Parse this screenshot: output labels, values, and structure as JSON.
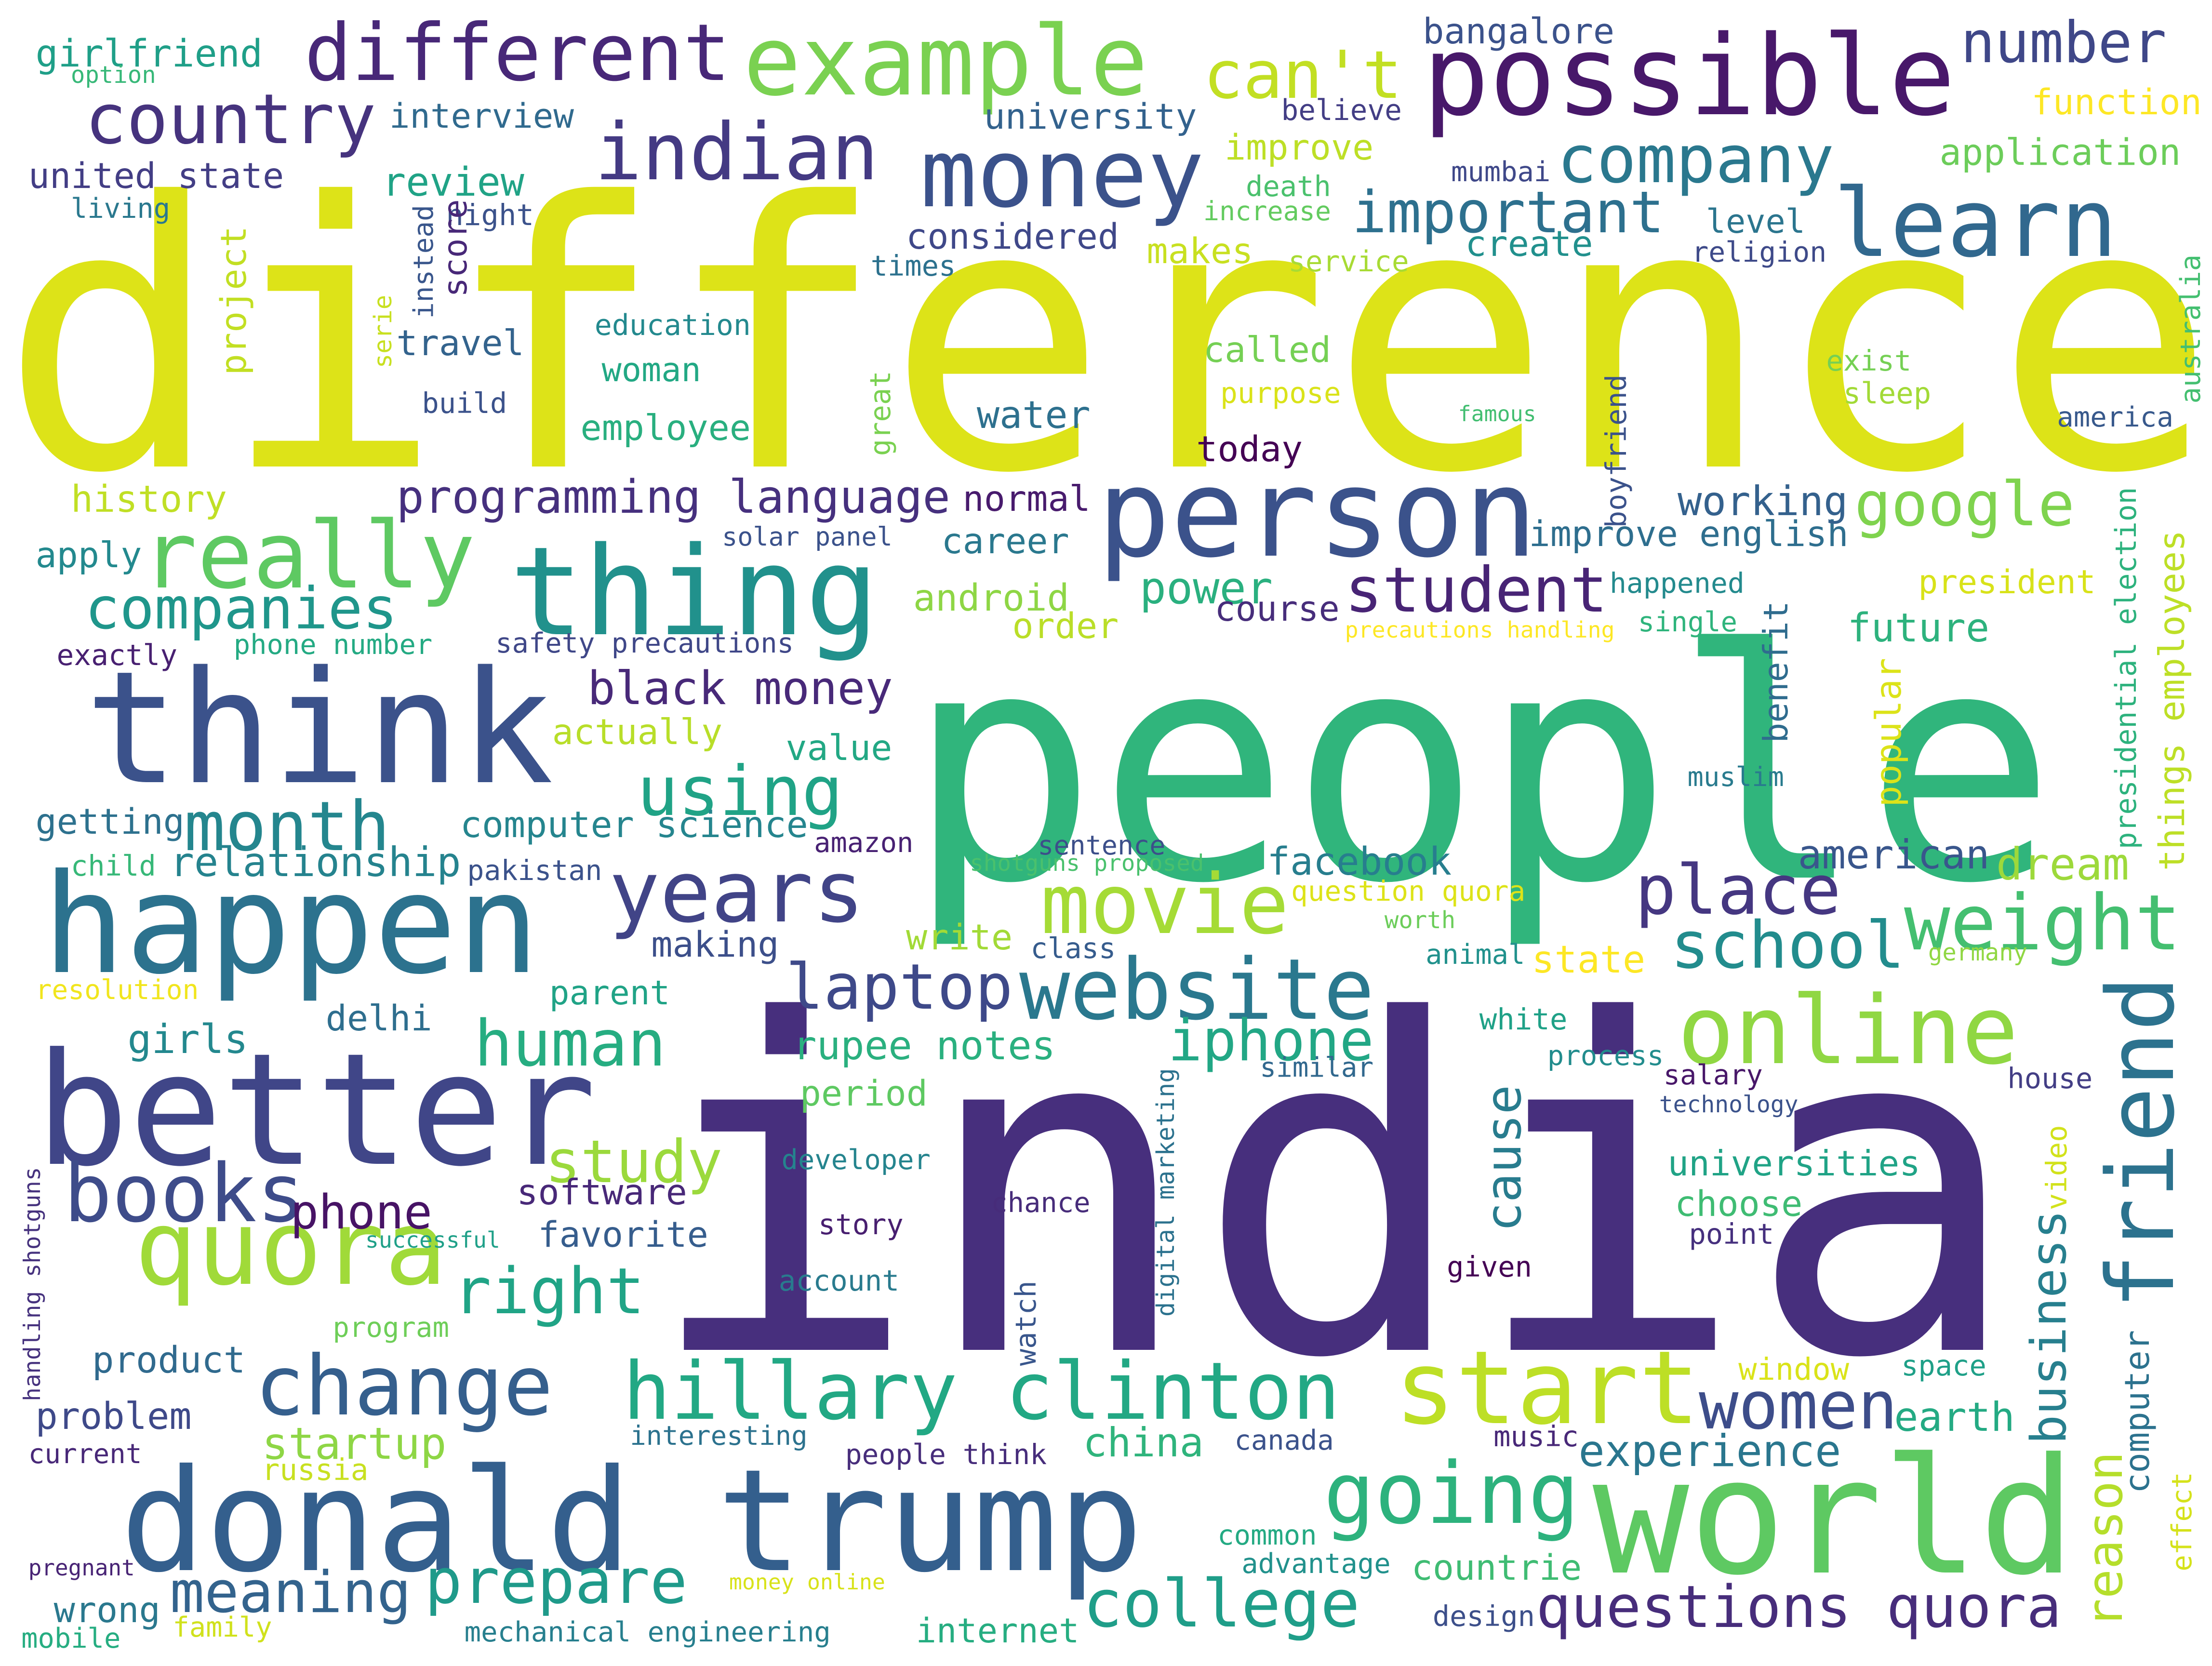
{
  "words": [
    {
      "text": "difference",
      "color": "#dde318",
      "vertical": false
    },
    {
      "text": "people",
      "color": "#30b57c",
      "vertical": false
    },
    {
      "text": "india",
      "color": "#472f7d",
      "vertical": false
    },
    {
      "text": "think",
      "color": "#3b528b",
      "vertical": false
    },
    {
      "text": "better",
      "color": "#404688",
      "vertical": false
    },
    {
      "text": "happen",
      "color": "#2c728e",
      "vertical": false
    },
    {
      "text": "donald trump",
      "color": "#345f8d",
      "vertical": false
    },
    {
      "text": "world",
      "color": "#5ec962",
      "vertical": false
    },
    {
      "text": "possible",
      "color": "#48186a",
      "vertical": false
    },
    {
      "text": "person",
      "color": "#3b528b",
      "vertical": false
    },
    {
      "text": "thing",
      "color": "#21918c",
      "vertical": false
    },
    {
      "text": "example",
      "color": "#7ad151",
      "vertical": false
    },
    {
      "text": "different",
      "color": "#482878",
      "vertical": false
    },
    {
      "text": "money",
      "color": "#3b528b",
      "vertical": false
    },
    {
      "text": "indian",
      "color": "#443a83",
      "vertical": false
    },
    {
      "text": "learn",
      "color": "#31688e",
      "vertical": false
    },
    {
      "text": "really",
      "color": "#5ec962",
      "vertical": false
    },
    {
      "text": "quora",
      "color": "#a0da39",
      "vertical": false
    },
    {
      "text": "start",
      "color": "#bddf26",
      "vertical": false
    },
    {
      "text": "online",
      "color": "#90d743",
      "vertical": false
    },
    {
      "text": "friend",
      "color": "#2c728e",
      "vertical": true
    },
    {
      "text": "hillary clinton",
      "color": "#22a884",
      "vertical": false
    },
    {
      "text": "change",
      "color": "#355f8d",
      "vertical": false
    },
    {
      "text": "website",
      "color": "#2a788e",
      "vertical": false
    },
    {
      "text": "movie",
      "color": "#a5db36",
      "vertical": false
    },
    {
      "text": "years",
      "color": "#414487",
      "vertical": false
    },
    {
      "text": "going",
      "color": "#2db27d",
      "vertical": false
    },
    {
      "text": "country",
      "color": "#46337e",
      "vertical": false
    },
    {
      "text": "books",
      "color": "#3e4c8a",
      "vertical": false
    },
    {
      "text": "college",
      "color": "#1f9e89",
      "vertical": false
    },
    {
      "text": "questions quora",
      "color": "#472d7b",
      "vertical": false
    },
    {
      "text": "weight",
      "color": "#44bf70",
      "vertical": false
    },
    {
      "text": "place",
      "color": "#453781",
      "vertical": false
    },
    {
      "text": "school",
      "color": "#228c8d",
      "vertical": false
    },
    {
      "text": "laptop",
      "color": "#3e4989",
      "vertical": false
    },
    {
      "text": "student",
      "color": "#482475",
      "vertical": false
    },
    {
      "text": "company",
      "color": "#2a788e",
      "vertical": false
    },
    {
      "text": "important",
      "color": "#2d708e",
      "vertical": false
    },
    {
      "text": "can't",
      "color": "#c2df23",
      "vertical": false
    },
    {
      "text": "number",
      "color": "#3f4788",
      "vertical": false
    },
    {
      "text": "using",
      "color": "#20a386",
      "vertical": false
    },
    {
      "text": "month",
      "color": "#24868e",
      "vertical": false
    },
    {
      "text": "companies",
      "color": "#1f968b",
      "vertical": false
    },
    {
      "text": "women",
      "color": "#3d4d8a",
      "vertical": false
    },
    {
      "text": "google",
      "color": "#7fd34e",
      "vertical": false
    },
    {
      "text": "prepare",
      "color": "#1f9a8a",
      "vertical": false
    },
    {
      "text": "meaning",
      "color": "#33638d",
      "vertical": false
    },
    {
      "text": "human",
      "color": "#26ad81",
      "vertical": false
    },
    {
      "text": "right",
      "color": "#20a486",
      "vertical": false
    },
    {
      "text": "iphone",
      "color": "#22a785",
      "vertical": false
    },
    {
      "text": "study",
      "color": "#9bd93c",
      "vertical": false
    },
    {
      "text": "cause",
      "color": "#287c8e",
      "vertical": true
    },
    {
      "text": "reason",
      "color": "#b5de2b",
      "vertical": true
    },
    {
      "text": "business",
      "color": "#277f8e",
      "vertical": true
    },
    {
      "text": "experience",
      "color": "#2a768e",
      "vertical": false
    },
    {
      "text": "programming language",
      "color": "#46307e",
      "vertical": false
    },
    {
      "text": "black money",
      "color": "#482979",
      "vertical": false
    },
    {
      "text": "relationship",
      "color": "#25838e",
      "vertical": false
    },
    {
      "text": "computer science",
      "color": "#25858e",
      "vertical": false
    },
    {
      "text": "improve english",
      "color": "#2e6e8e",
      "vertical": false
    },
    {
      "text": "working",
      "color": "#34618d",
      "vertical": false
    },
    {
      "text": "rupee notes",
      "color": "#2ab07f",
      "vertical": false
    },
    {
      "text": "money online",
      "color": "#d8e219",
      "vertical": false
    },
    {
      "text": "china",
      "color": "#2fb47c",
      "vertical": false
    },
    {
      "text": "phone",
      "color": "#471365",
      "vertical": false
    },
    {
      "text": "facebook",
      "color": "#277e8e",
      "vertical": false
    },
    {
      "text": "american",
      "color": "#39568c",
      "vertical": false
    },
    {
      "text": "future",
      "color": "#2db27d",
      "vertical": false
    },
    {
      "text": "actually",
      "color": "#b8de29",
      "vertical": false
    },
    {
      "text": "university",
      "color": "#33628d",
      "vertical": false
    },
    {
      "text": "interview",
      "color": "#306a8e",
      "vertical": false
    },
    {
      "text": "girlfriend",
      "color": "#1f9f88",
      "vertical": false
    },
    {
      "text": "bangalore",
      "color": "#3b528b",
      "vertical": false
    },
    {
      "text": "function",
      "color": "#fde725",
      "vertical": false
    },
    {
      "text": "application",
      "color": "#6ccd5a",
      "vertical": false
    },
    {
      "text": "united state",
      "color": "#433e85",
      "vertical": false
    },
    {
      "text": "review",
      "color": "#20a386",
      "vertical": false
    },
    {
      "text": "considered",
      "color": "#3f4889",
      "vertical": false
    },
    {
      "text": "create",
      "color": "#21908d",
      "vertical": false
    },
    {
      "text": "level",
      "color": "#2b758e",
      "vertical": false
    },
    {
      "text": "religion",
      "color": "#3e4a89",
      "vertical": false
    },
    {
      "text": "improve",
      "color": "#bddf26",
      "vertical": false
    },
    {
      "text": "believe",
      "color": "#433e85",
      "vertical": false
    },
    {
      "text": "mumbai",
      "color": "#3f4889",
      "vertical": false
    },
    {
      "text": "death",
      "color": "#4ac16d",
      "vertical": false
    },
    {
      "text": "increase",
      "color": "#63cb5f",
      "vertical": false
    },
    {
      "text": "makes",
      "color": "#c8e020",
      "vertical": false
    },
    {
      "text": "service",
      "color": "#a8db34",
      "vertical": false
    },
    {
      "text": "times",
      "color": "#2c718e",
      "vertical": false
    },
    {
      "text": "education",
      "color": "#23898e",
      "vertical": false
    },
    {
      "text": "woman",
      "color": "#22a884",
      "vertical": false
    },
    {
      "text": "travel",
      "color": "#33638d",
      "vertical": false
    },
    {
      "text": "build",
      "color": "#3b528b",
      "vertical": false
    },
    {
      "text": "employee",
      "color": "#29af7f",
      "vertical": false
    },
    {
      "text": "water",
      "color": "#2d708e",
      "vertical": false
    },
    {
      "text": "called",
      "color": "#75d054",
      "vertical": false
    },
    {
      "text": "purpose",
      "color": "#dae319",
      "vertical": false
    },
    {
      "text": "today",
      "color": "#440154",
      "vertical": false
    },
    {
      "text": "history",
      "color": "#c0df25",
      "vertical": false
    },
    {
      "text": "normal",
      "color": "#481b6d",
      "vertical": false
    },
    {
      "text": "career",
      "color": "#2a788e",
      "vertical": false
    },
    {
      "text": "android",
      "color": "#8ed645",
      "vertical": false
    },
    {
      "text": "power",
      "color": "#2ab07f",
      "vertical": false
    },
    {
      "text": "course",
      "color": "#472d7b",
      "vertical": false
    },
    {
      "text": "order",
      "color": "#bade28",
      "vertical": false
    },
    {
      "text": "apply",
      "color": "#23898e",
      "vertical": false
    },
    {
      "text": "exactly",
      "color": "#482071",
      "vertical": false
    },
    {
      "text": "phone number",
      "color": "#24aa83",
      "vertical": false
    },
    {
      "text": "safety precautions",
      "color": "#3f4788",
      "vertical": false
    },
    {
      "text": "solar panel",
      "color": "#3b528b",
      "vertical": false
    },
    {
      "text": "happened",
      "color": "#238a8d",
      "vertical": false
    },
    {
      "text": "single",
      "color": "#2fb47c",
      "vertical": false
    },
    {
      "text": "president",
      "color": "#d8e219",
      "vertical": false
    },
    {
      "text": "precautions handling",
      "color": "#fde725",
      "vertical": false
    },
    {
      "text": "getting",
      "color": "#2d718e",
      "vertical": false
    },
    {
      "text": "child",
      "color": "#37b878",
      "vertical": false
    },
    {
      "text": "pakistan",
      "color": "#3b528b",
      "vertical": false
    },
    {
      "text": "amazon",
      "color": "#482173",
      "vertical": false
    },
    {
      "text": "sentence",
      "color": "#3c4f8a",
      "vertical": false
    },
    {
      "text": "shotguns proposed",
      "color": "#4ac16d",
      "vertical": false
    },
    {
      "text": "question quora",
      "color": "#dde318",
      "vertical": false
    },
    {
      "text": "dream",
      "color": "#9dd93b",
      "vertical": false
    },
    {
      "text": "value",
      "color": "#22a884",
      "vertical": false
    },
    {
      "text": "making",
      "color": "#3c4f8a",
      "vertical": false
    },
    {
      "text": "write",
      "color": "#a2da37",
      "vertical": false
    },
    {
      "text": "class",
      "color": "#365c8d",
      "vertical": false
    },
    {
      "text": "worth",
      "color": "#6ccd5a",
      "vertical": false
    },
    {
      "text": "animal",
      "color": "#21918c",
      "vertical": false
    },
    {
      "text": "state",
      "color": "#fde725",
      "vertical": false
    },
    {
      "text": "germany",
      "color": "#90d743",
      "vertical": false
    },
    {
      "text": "resolution",
      "color": "#f1e51d",
      "vertical": false
    },
    {
      "text": "parent",
      "color": "#20a386",
      "vertical": false
    },
    {
      "text": "delhi",
      "color": "#2e6e8e",
      "vertical": false
    },
    {
      "text": "girls",
      "color": "#23888e",
      "vertical": false
    },
    {
      "text": "period",
      "color": "#5ec962",
      "vertical": false
    },
    {
      "text": "white",
      "color": "#1fa187",
      "vertical": false
    },
    {
      "text": "process",
      "color": "#228c8d",
      "vertical": false
    },
    {
      "text": "similar",
      "color": "#31688e",
      "vertical": false
    },
    {
      "text": "salary",
      "color": "#481769",
      "vertical": false
    },
    {
      "text": "house",
      "color": "#433e85",
      "vertical": false
    },
    {
      "text": "technology",
      "color": "#3b528b",
      "vertical": false
    },
    {
      "text": "developer",
      "color": "#25848e",
      "vertical": false
    },
    {
      "text": "software",
      "color": "#482878",
      "vertical": false
    },
    {
      "text": "favorite",
      "color": "#365d8d",
      "vertical": false
    },
    {
      "text": "chance",
      "color": "#472c7a",
      "vertical": false
    },
    {
      "text": "story",
      "color": "#481f70",
      "vertical": false
    },
    {
      "text": "point",
      "color": "#46307e",
      "vertical": false
    },
    {
      "text": "universities",
      "color": "#20a386",
      "vertical": false
    },
    {
      "text": "choose",
      "color": "#3fbc73",
      "vertical": false
    },
    {
      "text": "successful",
      "color": "#1fa088",
      "vertical": false
    },
    {
      "text": "account",
      "color": "#297b8e",
      "vertical": false
    },
    {
      "text": "given",
      "color": "#440154",
      "vertical": false
    },
    {
      "text": "program",
      "color": "#6ece58",
      "vertical": false
    },
    {
      "text": "product",
      "color": "#306a8e",
      "vertical": false
    },
    {
      "text": "problem",
      "color": "#3e4989",
      "vertical": false
    },
    {
      "text": "current",
      "color": "#482878",
      "vertical": false
    },
    {
      "text": "startup",
      "color": "#8ed645",
      "vertical": false
    },
    {
      "text": "russia",
      "color": "#c8e020",
      "vertical": false
    },
    {
      "text": "interesting",
      "color": "#2c728e",
      "vertical": false
    },
    {
      "text": "people think",
      "color": "#472d7b",
      "vertical": false
    },
    {
      "text": "canada",
      "color": "#3b528b",
      "vertical": false
    },
    {
      "text": "music",
      "color": "#482878",
      "vertical": false
    },
    {
      "text": "window",
      "color": "#dae319",
      "vertical": false
    },
    {
      "text": "space",
      "color": "#1fa088",
      "vertical": false
    },
    {
      "text": "earth",
      "color": "#24aa83",
      "vertical": false
    },
    {
      "text": "wrong",
      "color": "#2a788e",
      "vertical": false
    },
    {
      "text": "common",
      "color": "#24aa83",
      "vertical": false
    },
    {
      "text": "advantage",
      "color": "#21918c",
      "vertical": false
    },
    {
      "text": "countrie",
      "color": "#3fbc73",
      "vertical": false
    },
    {
      "text": "design",
      "color": "#3c4f8a",
      "vertical": false
    },
    {
      "text": "pregnant",
      "color": "#482475",
      "vertical": false
    },
    {
      "text": "mobile",
      "color": "#26ad81",
      "vertical": false
    },
    {
      "text": "family",
      "color": "#d0e11c",
      "vertical": false
    },
    {
      "text": "mechanical engineering",
      "color": "#277f8e",
      "vertical": false
    },
    {
      "text": "internet",
      "color": "#26ad81",
      "vertical": false
    },
    {
      "text": "living",
      "color": "#2a788e",
      "vertical": false
    },
    {
      "text": "option",
      "color": "#37b878",
      "vertical": false
    },
    {
      "text": "night",
      "color": "#3b528b",
      "vertical": false
    },
    {
      "text": "instead",
      "color": "#39568c",
      "vertical": true
    },
    {
      "text": "score",
      "color": "#482878",
      "vertical": true
    },
    {
      "text": "project",
      "color": "#c2df23",
      "vertical": true
    },
    {
      "text": "serie",
      "color": "#c8e020",
      "vertical": true
    },
    {
      "text": "great",
      "color": "#7ad151",
      "vertical": true
    },
    {
      "text": "famous",
      "color": "#42be71",
      "vertical": false
    },
    {
      "text": "exist",
      "color": "#75d054",
      "vertical": false
    },
    {
      "text": "sleep",
      "color": "#a2da37",
      "vertical": false
    },
    {
      "text": "america",
      "color": "#38598c",
      "vertical": false
    },
    {
      "text": "australia",
      "color": "#44bf70",
      "vertical": true
    },
    {
      "text": "boyfriend",
      "color": "#3b528b",
      "vertical": true
    },
    {
      "text": "benefit",
      "color": "#2f6c8e",
      "vertical": true
    },
    {
      "text": "popular",
      "color": "#dce319",
      "vertical": true
    },
    {
      "text": "muslim",
      "color": "#297b8e",
      "vertical": false
    },
    {
      "text": "presidential election",
      "color": "#2db27d",
      "vertical": true
    },
    {
      "text": "things employees",
      "color": "#bddf26",
      "vertical": true
    },
    {
      "text": "digital marketing",
      "color": "#2c728e",
      "vertical": true
    },
    {
      "text": "watch",
      "color": "#39568c",
      "vertical": true
    },
    {
      "text": "handling shotguns",
      "color": "#46327e",
      "vertical": true
    },
    {
      "text": "video",
      "color": "#d2e21b",
      "vertical": true
    },
    {
      "text": "computer",
      "color": "#2c728e",
      "vertical": true
    },
    {
      "text": "effect",
      "color": "#d5e21a",
      "vertical": true
    }
  ]
}
